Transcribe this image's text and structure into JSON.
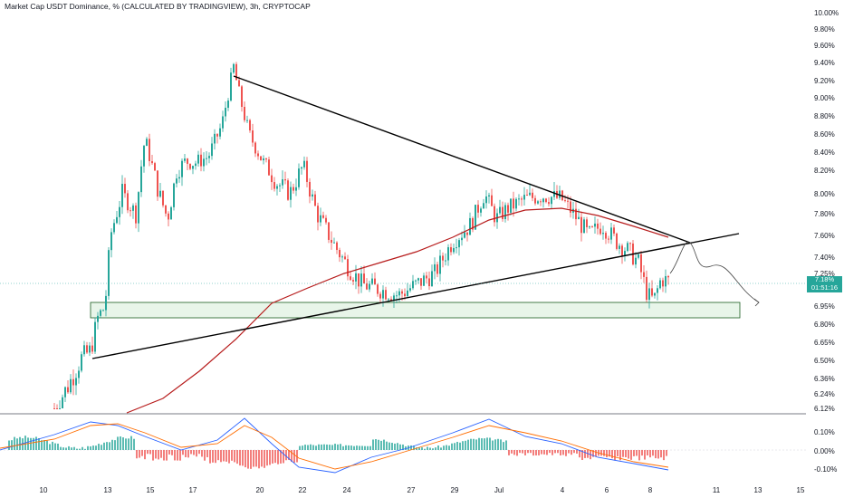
{
  "chart_title": "Market Cap USDT Dominance, % (CALCULATED BY TRADINGVIEW), 3h, CRYPTOCAP",
  "price_badge": {
    "price": "7.18%",
    "timer": "01:51:16"
  },
  "colors": {
    "up": "#26a69a",
    "down": "#ef5350",
    "ma": "#b71c1c",
    "macd": "#2962ff",
    "signal": "#ff6d00",
    "zone_fill": "#e8f5e9",
    "zone_stroke": "#1b5e20"
  },
  "chart_data": {
    "type": "candlestick",
    "ylim": [
      6.12,
      10.0
    ],
    "y_ticks": [
      "10.00%",
      "9.80%",
      "9.60%",
      "9.40%",
      "9.20%",
      "9.00%",
      "8.80%",
      "8.60%",
      "8.40%",
      "8.20%",
      "8.00%",
      "7.80%",
      "7.60%",
      "7.40%",
      "7.25%",
      "6.95%",
      "6.80%",
      "6.65%",
      "6.50%",
      "6.36%",
      "6.24%",
      "6.12%"
    ],
    "x_ticks": [
      "10",
      "13",
      "15",
      "17",
      "20",
      "22",
      "24",
      "27",
      "29",
      "Jul",
      "4",
      "6",
      "8",
      "11",
      "13",
      "15"
    ],
    "x_domain_days": [
      8.7,
      15.0
    ],
    "series_close": [
      [
        9.3,
        6.2
      ],
      [
        9.7,
        6.28
      ],
      [
        9.9,
        6.36
      ],
      [
        10.1,
        6.45
      ],
      [
        10.3,
        6.53
      ],
      [
        10.6,
        6.6
      ],
      [
        10.8,
        6.68
      ],
      [
        11.1,
        6.75
      ],
      [
        11.4,
        6.83
      ],
      [
        11.7,
        6.9
      ],
      [
        12.0,
        6.97
      ],
      [
        12.3,
        7.02
      ],
      [
        12.6,
        7.05
      ],
      [
        12.9,
        7.1
      ],
      [
        13.2,
        7.15
      ],
      [
        13.6,
        7.2
      ],
      [
        14.0,
        7.25
      ],
      [
        14.4,
        7.3
      ],
      [
        14.8,
        7.35
      ],
      [
        15.2,
        7.4
      ],
      [
        15.6,
        7.45
      ],
      [
        16.0,
        7.5
      ],
      [
        16.4,
        7.55
      ],
      [
        16.8,
        7.6
      ],
      [
        17.2,
        7.62
      ],
      [
        17.6,
        7.65
      ],
      [
        18.0,
        7.68
      ],
      [
        18.4,
        7.7
      ]
    ],
    "ohlc": [
      [
        "Jun 10",
        "6.10",
        "6.20",
        "6.12",
        "6.18"
      ],
      [
        "Jun 11",
        "6.18",
        "6.50",
        "6.16",
        "6.48"
      ],
      [
        "Jun 12",
        "6.48",
        "6.78",
        "6.44",
        "6.74"
      ],
      [
        "Jun 13",
        "6.74",
        "7.50",
        "6.70",
        "7.45"
      ],
      [
        "Jun 14",
        "7.45",
        "8.20",
        "7.40",
        "8.05"
      ],
      [
        "Jun 15",
        "8.05",
        "8.60",
        "7.70",
        "7.90"
      ],
      [
        "Jun 16",
        "7.90",
        "8.40",
        "7.60",
        "8.35"
      ],
      [
        "Jun 17",
        "8.35",
        "9.38",
        "8.30",
        "9.10"
      ],
      [
        "Jun 18",
        "9.10",
        "9.20",
        "8.40",
        "8.55"
      ],
      [
        "Jun 19",
        "8.55",
        "8.60",
        "8.20",
        "8.30"
      ],
      [
        "Jun 20",
        "8.30",
        "8.40",
        "7.95",
        "8.10"
      ],
      [
        "Jun 21",
        "8.10",
        "8.35",
        "7.80",
        "8.25"
      ],
      [
        "Jun 22",
        "8.25",
        "8.30",
        "7.55",
        "7.70"
      ],
      [
        "Jun 23",
        "7.70",
        "7.75",
        "7.40",
        "7.48"
      ],
      [
        "Jun 24",
        "7.48",
        "7.55",
        "7.20",
        "7.25"
      ],
      [
        "Jun 25",
        "7.25",
        "7.35",
        "7.10",
        "7.12"
      ],
      [
        "Jun 26",
        "7.12",
        "7.40",
        "7.05",
        "7.30"
      ],
      [
        "Jun 27",
        "7.30",
        "7.55",
        "7.25",
        "7.50"
      ],
      [
        "Jun 28",
        "7.50",
        "7.70",
        "7.45",
        "7.65"
      ],
      [
        "Jun 29",
        "7.65",
        "7.95",
        "7.60",
        "7.90"
      ],
      [
        "Jun 30",
        "7.90",
        "8.10",
        "7.60",
        "7.75"
      ],
      [
        "Jul 1",
        "7.75",
        "7.95",
        "7.70",
        "7.90"
      ],
      [
        "Jul 2",
        "7.90",
        "8.00",
        "7.75",
        "7.95"
      ],
      [
        "Jul 3",
        "7.95",
        "8.05",
        "7.80",
        "7.85"
      ],
      [
        "Jul 4",
        "7.85",
        "7.95",
        "7.60",
        "7.65"
      ],
      [
        "Jul 5",
        "7.65",
        "7.80",
        "7.50",
        "7.55"
      ],
      [
        "Jul 6",
        "7.55",
        "7.60",
        "7.30",
        "7.35"
      ],
      [
        "Jul 7",
        "7.35",
        "7.40",
        "7.08",
        "7.12"
      ],
      [
        "Jul 8",
        "7.12",
        "7.28",
        "6.98",
        "7.18"
      ]
    ],
    "support_zone": {
      "low": 6.86,
      "high": 6.99
    },
    "lower_pane": {
      "type": "macd",
      "y_ticks": [
        "0.10%",
        "0.00%",
        "-0.10%"
      ]
    }
  }
}
